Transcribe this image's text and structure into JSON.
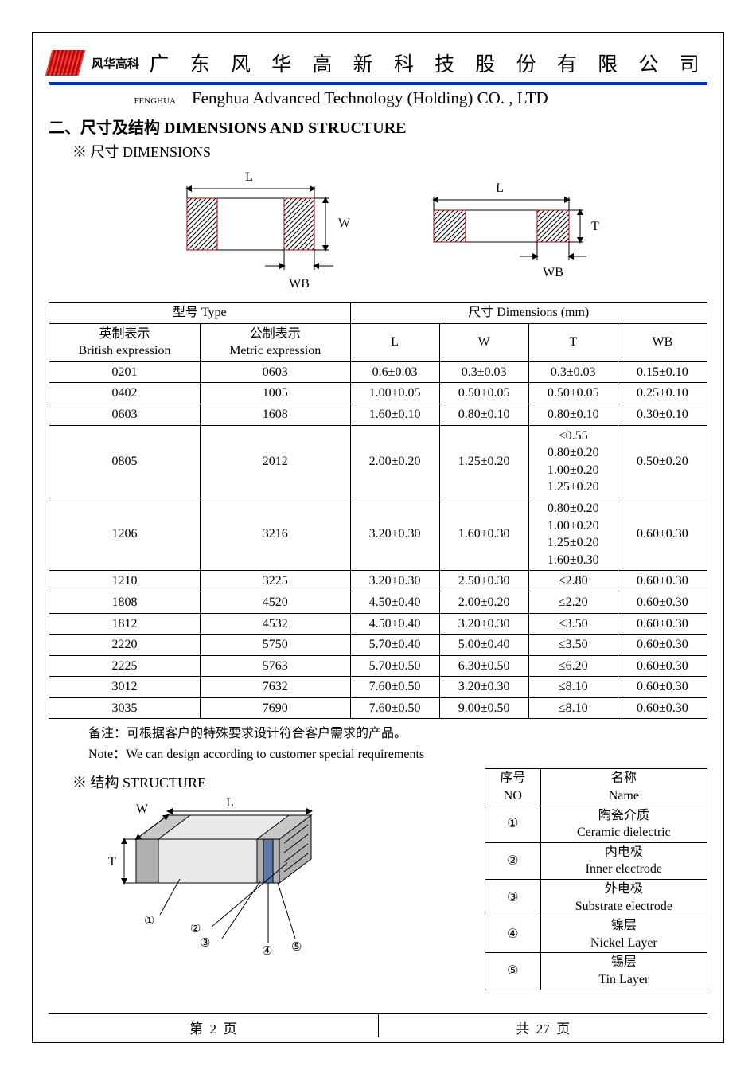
{
  "colors": {
    "header_rule": "#0033cc",
    "logo": "#cc0000",
    "text": "#000000",
    "background": "#ffffff",
    "hatch": "#000000",
    "hatch_border": "#a00000",
    "body_fill": "#e9e9e9",
    "cap_fill": "#b0b0b0",
    "nickel_fill": "#5b7aa8"
  },
  "header": {
    "brand_cn": "风华高科",
    "title_cn": "广 东 风 华 高 新 科 技 股 份 有 限 公 司",
    "fenghua_label": "FENGHUA",
    "title_en": "Fenghua Advanced Technology (Holding) CO. , LTD"
  },
  "section": {
    "title": "二、尺寸及结构   DIMENSIONS AND STRUCTURE",
    "dim_label": "※  尺寸 DIMENSIONS",
    "struct_label": "※  结构 STRUCTURE"
  },
  "diagram_labels": {
    "L": "L",
    "W": "W",
    "T": "T",
    "WB": "WB"
  },
  "table": {
    "header_type": "型号 Type",
    "header_dim": "尺寸     Dimensions     (mm)",
    "col_brit_cn": "英制表示",
    "col_brit_en": "British expression",
    "col_metr_cn": "公制表示",
    "col_metr_en": "Metric expression",
    "col_L": "L",
    "col_W": "W",
    "col_T": "T",
    "col_WB": "WB",
    "rows": [
      {
        "brit": "0201",
        "metr": "0603",
        "L": "0.6±0.03",
        "W": "0.3±0.03",
        "T": "0.3±0.03",
        "WB": "0.15±0.10"
      },
      {
        "brit": "0402",
        "metr": "1005",
        "L": "1.00±0.05",
        "W": "0.50±0.05",
        "T": "0.50±0.05",
        "WB": "0.25±0.10"
      },
      {
        "brit": "0603",
        "metr": "1608",
        "L": "1.60±0.10",
        "W": "0.80±0.10",
        "T": "0.80±0.10",
        "WB": "0.30±0.10"
      },
      {
        "brit": "0805",
        "metr": "2012",
        "L": "2.00±0.20",
        "W": "1.25±0.20",
        "T": "≤0.55\n0.80±0.20\n1.00±0.20\n1.25±0.20",
        "WB": "0.50±0.20"
      },
      {
        "brit": "1206",
        "metr": "3216",
        "L": "3.20±0.30",
        "W": "1.60±0.30",
        "T": "0.80±0.20\n1.00±0.20\n1.25±0.20\n1.60±0.30",
        "WB": "0.60±0.30"
      },
      {
        "brit": "1210",
        "metr": "3225",
        "L": "3.20±0.30",
        "W": "2.50±0.30",
        "T": "≤2.80",
        "WB": "0.60±0.30"
      },
      {
        "brit": "1808",
        "metr": "4520",
        "L": "4.50±0.40",
        "W": "2.00±0.20",
        "T": "≤2.20",
        "WB": "0.60±0.30"
      },
      {
        "brit": "1812",
        "metr": "4532",
        "L": "4.50±0.40",
        "W": "3.20±0.30",
        "T": "≤3.50",
        "WB": "0.60±0.30"
      },
      {
        "brit": "2220",
        "metr": "5750",
        "L": "5.70±0.40",
        "W": "5.00±0.40",
        "T": "≤3.50",
        "WB": "0.60±0.30"
      },
      {
        "brit": "2225",
        "metr": "5763",
        "L": "5.70±0.50",
        "W": "6.30±0.50",
        "T": "≤6.20",
        "WB": "0.60±0.30"
      },
      {
        "brit": "3012",
        "metr": "7632",
        "L": "7.60±0.50",
        "W": "3.20±0.30",
        "T": "≤8.10",
        "WB": "0.60±0.30"
      },
      {
        "brit": "3035",
        "metr": "7690",
        "L": "7.60±0.50",
        "W": "9.00±0.50",
        "T": "≤8.10",
        "WB": "0.60±0.30"
      }
    ]
  },
  "note": {
    "cn": "备注：可根据客户的特殊要求设计符合客户需求的产品。",
    "en": "Note：We can design according to customer special requirements"
  },
  "struct_table": {
    "head_no_cn": "序号",
    "head_no_en": "NO",
    "head_name_cn": "名称",
    "head_name_en": "Name",
    "rows": [
      {
        "no": "①",
        "cn": "陶瓷介质",
        "en": "Ceramic   dielectric"
      },
      {
        "no": "②",
        "cn": "内电极",
        "en": "Inner   electrode"
      },
      {
        "no": "③",
        "cn": "外电极",
        "en": "Substrate   electrode"
      },
      {
        "no": "④",
        "cn": "镍层",
        "en": "Nickel Layer"
      },
      {
        "no": "⑤",
        "cn": "锡层",
        "en": "Tin Layer"
      }
    ]
  },
  "footer": {
    "left_pre": "第",
    "page": "2",
    "left_post": "页",
    "right_pre": "共",
    "total": "27",
    "right_post": "页"
  }
}
